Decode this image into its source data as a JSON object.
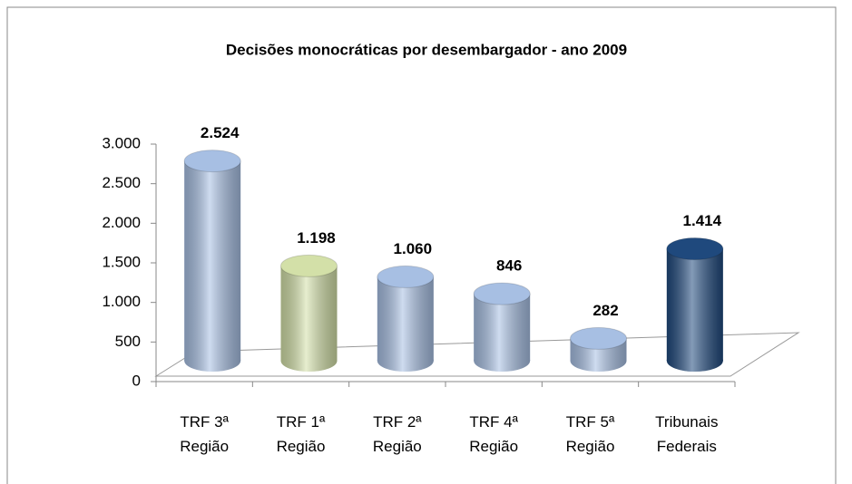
{
  "chart_data": {
    "type": "bar",
    "title": "Decisões monocráticas por desembargador - ano 2009",
    "categories": [
      "TRF 3ª Região",
      "TRF 1ª Região",
      "TRF 2ª Região",
      "TRF 4ª Região",
      "TRF 5ª Região",
      "Tribunais Federais"
    ],
    "values": [
      2524,
      1198,
      1060,
      846,
      282,
      1414
    ],
    "value_labels": [
      "2.524",
      "1.198",
      "1.060",
      "846",
      "282",
      "1.414"
    ],
    "colors": [
      "#a7bfe3",
      "#d3e0a8",
      "#a7bfe3",
      "#a7bfe3",
      "#a7bfe3",
      "#1f497d"
    ],
    "ylim": [
      0,
      3000
    ],
    "yticks": [
      0,
      500,
      {
        "value": 1000,
        "label": "1.000"
      },
      {
        "value": 1500,
        "label": "1.500"
      },
      {
        "value": 2000,
        "label": "2.000"
      },
      {
        "value": 2500,
        "label": "2.500"
      },
      {
        "value": 3000,
        "label": "3.000"
      }
    ]
  }
}
